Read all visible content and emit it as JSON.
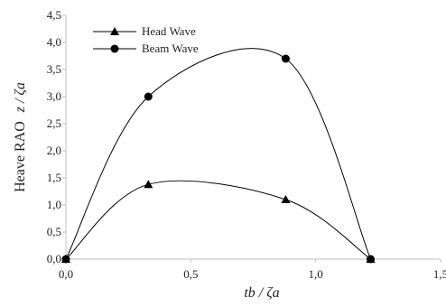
{
  "chart_data": {
    "type": "scatter",
    "xlabel": "tb / ζa",
    "ylabel_prefix": "Heave RAO",
    "ylabel_symbol": "z / ζa",
    "xlim": [
      0.0,
      1.5
    ],
    "ylim": [
      0.0,
      4.5
    ],
    "x_ticks": [
      0.0,
      0.5,
      1.0,
      1.5
    ],
    "y_ticks": [
      0.0,
      0.5,
      1.0,
      1.5,
      2.0,
      2.5,
      3.0,
      3.5,
      4.0,
      4.5
    ],
    "x_tick_labels": [
      "0,0",
      "0,5",
      "1,0",
      "1,5"
    ],
    "y_tick_labels": [
      "0,0",
      "0,5",
      "1,0",
      "1,5",
      "2,0",
      "2,5",
      "3,0",
      "3,5",
      "4,0",
      "4,5"
    ],
    "grid": false,
    "legend_position": "top-left",
    "smooth_lines": true,
    "series": [
      {
        "name": "Head Wave",
        "marker": "triangle",
        "color": "#000000",
        "x": [
          0.0,
          0.33,
          0.88,
          1.22
        ],
        "y": [
          0.0,
          1.38,
          1.1,
          0.0
        ]
      },
      {
        "name": "Beam Wave",
        "marker": "circle",
        "color": "#000000",
        "x": [
          0.0,
          0.33,
          0.88,
          1.22
        ],
        "y": [
          0.0,
          3.0,
          3.7,
          0.0
        ]
      }
    ]
  }
}
